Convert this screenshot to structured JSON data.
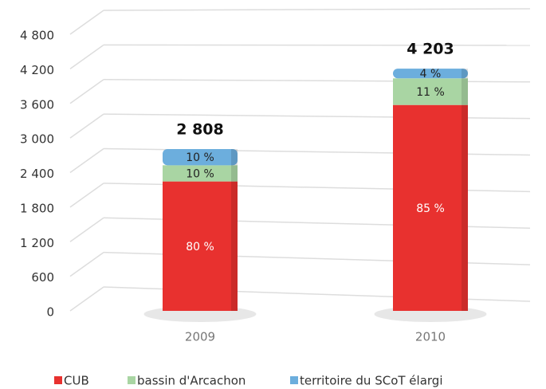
{
  "chart_data": {
    "type": "stacked_bar",
    "categories": [
      "2009",
      "2010"
    ],
    "series": [
      {
        "name": "CUB",
        "color": "#e8312f",
        "values": [
          2246,
          3573
        ],
        "value_labels": [
          "80 %",
          "85 %"
        ]
      },
      {
        "name": "bassin d'Arcachon",
        "color": "#a9d5a3",
        "values": [
          281,
          462
        ],
        "value_labels": [
          "10 %",
          "11 %"
        ]
      },
      {
        "name": "territoire du SCoT élargi",
        "color": "#6caedd",
        "values": [
          281,
          168
        ],
        "value_labels": [
          "10 %",
          "4 %"
        ]
      }
    ],
    "totals": [
      2808,
      4203
    ],
    "total_labels": [
      "2 808",
      "4 203"
    ],
    "ylim": [
      0,
      4800
    ],
    "yticks": [
      0,
      600,
      {
        "value": 1200,
        "label": "1 200"
      },
      {
        "value": 1800,
        "label": "1 800"
      },
      {
        "value": 2400,
        "label": "2 400"
      },
      {
        "value": 3000,
        "label": "3 000"
      },
      {
        "value": 3600,
        "label": "3 600"
      },
      {
        "value": 4200,
        "label": "4 200"
      },
      {
        "value": 4800,
        "label": "4 800"
      }
    ],
    "grid": true,
    "legend": "bottom"
  }
}
